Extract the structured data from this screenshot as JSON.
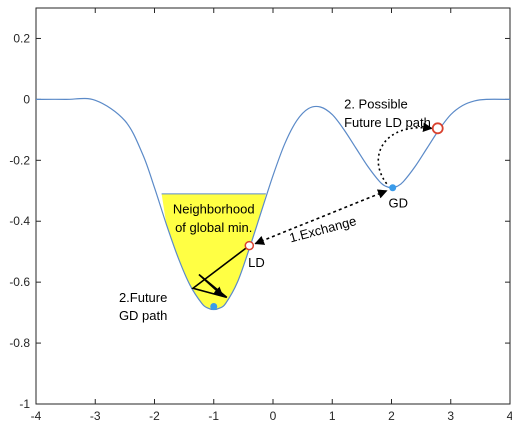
{
  "chart_data": {
    "type": "line",
    "title": "",
    "xlabel": "",
    "ylabel": "",
    "xlim": [
      -4,
      4
    ],
    "ylim": [
      -1,
      0.3
    ],
    "xticks": [
      "-4",
      "-3",
      "-2",
      "-1",
      "0",
      "1",
      "2",
      "3",
      "4"
    ],
    "yticks": [
      "-1",
      "-0.8",
      "-0.6",
      "-0.4",
      "-0.2",
      "0",
      "0.2"
    ],
    "grid": false,
    "series": [
      {
        "x": [
          -4,
          -3.5,
          -3,
          -2.5,
          -2.2,
          -2,
          -1.8,
          -1.6,
          -1.4,
          -1.2,
          -1.1,
          -1,
          -0.9,
          -0.8,
          -0.6,
          -0.4,
          -0.2,
          0,
          0.2,
          0.4,
          0.6,
          0.8,
          1,
          1.2,
          1.4,
          1.6,
          1.8,
          1.9,
          2,
          2.1,
          2.2,
          2.4,
          2.6,
          2.8,
          3,
          3.2,
          3.4,
          3.6,
          4
        ],
        "y": [
          0,
          0,
          -0.003,
          -0.07,
          -0.18,
          -0.29,
          -0.41,
          -0.52,
          -0.61,
          -0.67,
          -0.685,
          -0.69,
          -0.685,
          -0.67,
          -0.6,
          -0.49,
          -0.37,
          -0.25,
          -0.145,
          -0.07,
          -0.03,
          -0.025,
          -0.05,
          -0.1,
          -0.16,
          -0.22,
          -0.27,
          -0.285,
          -0.29,
          -0.285,
          -0.27,
          -0.22,
          -0.16,
          -0.1,
          -0.05,
          -0.02,
          -0.005,
          0,
          0
        ]
      }
    ],
    "neighborhood_region": {
      "x_left": -1.88,
      "x_right": -0.12,
      "y_top": -0.31,
      "color": "#ffff44"
    },
    "points": {
      "ld": {
        "x": -0.4,
        "y": -0.48,
        "label": "LD"
      },
      "gd": {
        "x": 2.02,
        "y": -0.29,
        "label": "GD"
      },
      "future_gd_end": {
        "x": -1.0,
        "y": -0.68
      },
      "future_ld_end": {
        "x": 2.78,
        "y": -0.095
      }
    },
    "future_gd_path": [
      [
        -0.4,
        -0.48
      ],
      [
        -1.35,
        -0.62
      ],
      [
        -0.78,
        -0.65
      ],
      [
        -1.25,
        -0.575
      ],
      [
        -0.85,
        -0.645
      ]
    ],
    "annotations": {
      "neighborhood": [
        "Neighborhood",
        "of global min."
      ],
      "exchange": "1.Exchange",
      "future_gd": [
        "2.Future",
        "GD path"
      ],
      "possible_ld": [
        "2. Possible",
        "Future LD path"
      ]
    },
    "colors": {
      "curve": "#5b8ac8",
      "fill": "#ffff44",
      "blue_point": "#3a9bea",
      "red_point": "#d9412e",
      "axes": "#262626"
    }
  }
}
